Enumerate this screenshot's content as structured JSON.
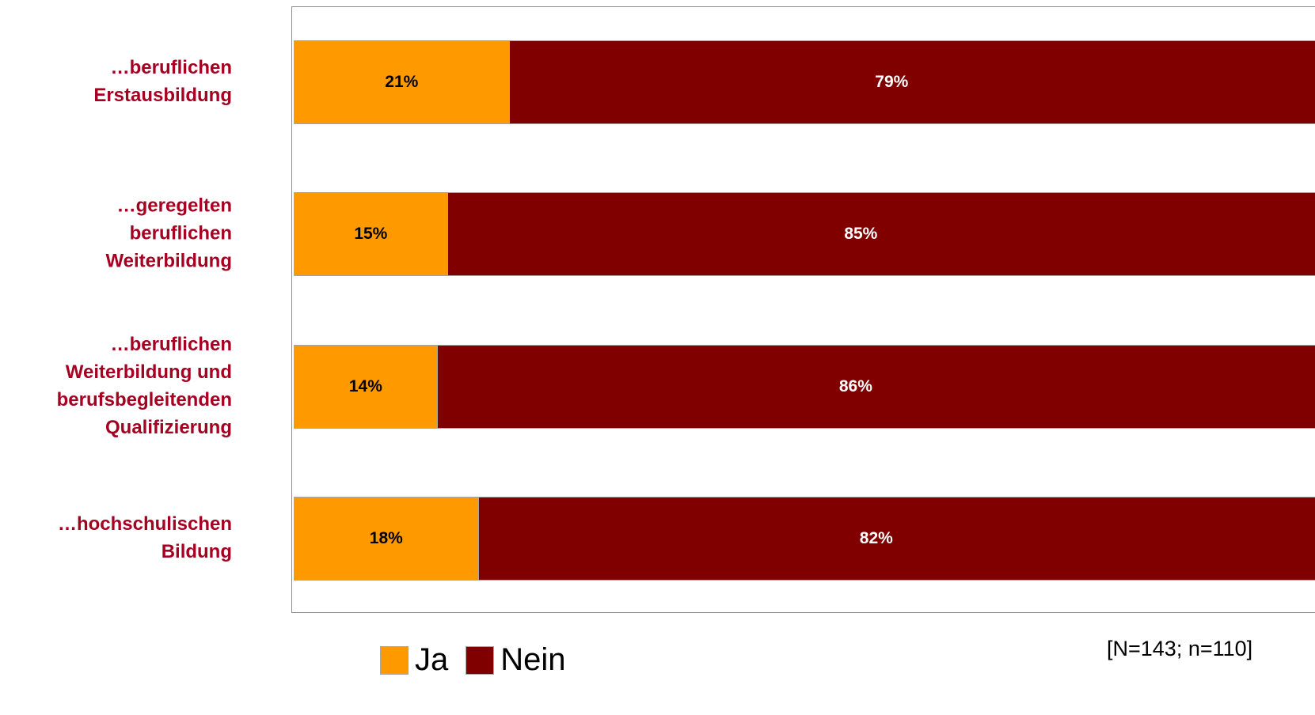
{
  "chart_data": {
    "type": "bar",
    "orientation": "horizontal",
    "stacked": true,
    "categories": [
      [
        "…beruflichen",
        "Erstausbildung"
      ],
      [
        "…geregelten",
        "beruflichen",
        "Weiterbildung"
      ],
      [
        "…beruflichen",
        "Weiterbildung und",
        "berufsbegleitenden",
        "Qualifizierung"
      ],
      [
        "…hochschulischen",
        "Bildung"
      ]
    ],
    "series": [
      {
        "name": "Ja",
        "color": "#ff9900",
        "label_color": "#000000",
        "values": [
          21,
          15,
          14,
          18
        ],
        "labels": [
          "21%",
          "15%",
          "14%",
          "18%"
        ]
      },
      {
        "name": "Nein",
        "color": "#800000",
        "label_color": "#ffffff",
        "values": [
          79,
          85,
          86,
          82
        ],
        "labels": [
          "79%",
          "85%",
          "86%",
          "82%"
        ]
      }
    ],
    "xlim": [
      0,
      100
    ],
    "legend_position": "bottom-left",
    "grid": false
  },
  "note": "[N=143; n=110]"
}
